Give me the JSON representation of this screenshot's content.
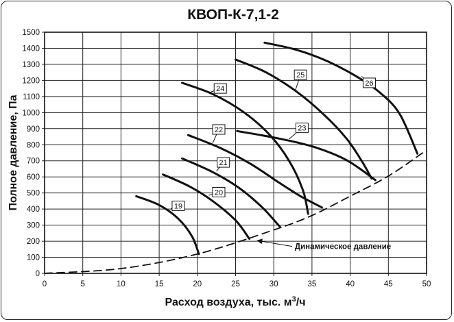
{
  "chart_data": {
    "type": "line",
    "title": "КВОП-К-7,1-2",
    "xlabel": "Расход воздуха,  тыс. м",
    "xlabel_sup": "3",
    "xlabel_tail": "/ч",
    "ylabel": "Полное давление, Па",
    "xlim": [
      0,
      50
    ],
    "ylim": [
      0,
      1500
    ],
    "x_ticks": [
      0,
      5,
      10,
      15,
      20,
      25,
      30,
      35,
      40,
      45,
      50
    ],
    "y_ticks": [
      0,
      100,
      200,
      300,
      400,
      500,
      600,
      700,
      800,
      900,
      1000,
      1100,
      1200,
      1300,
      1400,
      1500
    ],
    "grid": true,
    "series": [
      {
        "name": "19",
        "points": [
          [
            12,
            480
          ],
          [
            15,
            425
          ],
          [
            17.5,
            340
          ],
          [
            19.3,
            230
          ],
          [
            20.2,
            120
          ]
        ]
      },
      {
        "name": "20",
        "points": [
          [
            15.5,
            615
          ],
          [
            19,
            540
          ],
          [
            22,
            450
          ],
          [
            25,
            330
          ],
          [
            26.8,
            215
          ]
        ]
      },
      {
        "name": "21",
        "points": [
          [
            18,
            715
          ],
          [
            22,
            630
          ],
          [
            25.5,
            530
          ],
          [
            28.5,
            410
          ],
          [
            30.8,
            290
          ]
        ]
      },
      {
        "name": "22",
        "points": [
          [
            18.8,
            860
          ],
          [
            23,
            780
          ],
          [
            27,
            680
          ],
          [
            30.5,
            570
          ],
          [
            33.5,
            480
          ],
          [
            36.3,
            410
          ]
        ]
      },
      {
        "name": "23",
        "points": [
          [
            25.2,
            885
          ],
          [
            30,
            845
          ],
          [
            35,
            790
          ],
          [
            39.5,
            705
          ],
          [
            43.3,
            580
          ]
        ]
      },
      {
        "name": "24",
        "points": [
          [
            18,
            1185
          ],
          [
            22,
            1115
          ],
          [
            26,
            1005
          ],
          [
            29.5,
            860
          ],
          [
            32,
            700
          ],
          [
            33.8,
            520
          ],
          [
            34.5,
            370
          ]
        ]
      },
      {
        "name": "25",
        "points": [
          [
            25,
            1330
          ],
          [
            29,
            1250
          ],
          [
            33,
            1130
          ],
          [
            36.5,
            990
          ],
          [
            39.5,
            840
          ],
          [
            41.5,
            700
          ],
          [
            42.8,
            590
          ]
        ]
      },
      {
        "name": "26",
        "points": [
          [
            28.8,
            1435
          ],
          [
            33,
            1390
          ],
          [
            37,
            1320
          ],
          [
            41,
            1220
          ],
          [
            44,
            1120
          ],
          [
            46.5,
            990
          ],
          [
            48.8,
            745
          ]
        ]
      },
      {
        "name": "Динамическое давление",
        "style": "dashed",
        "points": [
          [
            0,
            0
          ],
          [
            10,
            30
          ],
          [
            20,
            120
          ],
          [
            30,
            270
          ],
          [
            35,
            360
          ],
          [
            40,
            480
          ],
          [
            45,
            605
          ],
          [
            49.5,
            750
          ]
        ]
      }
    ],
    "curve_labels": [
      {
        "text": "19",
        "x": 17.5,
        "y": 420,
        "lead_to": [
          16.5,
          400
        ]
      },
      {
        "text": "20",
        "x": 22.8,
        "y": 505,
        "lead_to": [
          21.5,
          485
        ]
      },
      {
        "text": "21",
        "x": 23.4,
        "y": 690,
        "lead_to": [
          22.5,
          635
        ]
      },
      {
        "text": "22",
        "x": 22.8,
        "y": 895,
        "lead_to": [
          22,
          810
        ]
      },
      {
        "text": "23",
        "x": 33.7,
        "y": 905,
        "lead_to": [
          32,
          835
        ]
      },
      {
        "text": "24",
        "x": 23,
        "y": 1150,
        "lead_to": [
          21.6,
          1125
        ]
      },
      {
        "text": "25",
        "x": 33.5,
        "y": 1235,
        "lead_to": [
          32.8,
          1135
        ]
      },
      {
        "text": "26",
        "x": 42.5,
        "y": 1185,
        "lead_to": [
          41.5,
          1225
        ]
      }
    ],
    "annotation": {
      "text": "Динамическое давление",
      "x": 31.5,
      "y": 155,
      "arrow_to": [
        27.5,
        208
      ]
    }
  }
}
